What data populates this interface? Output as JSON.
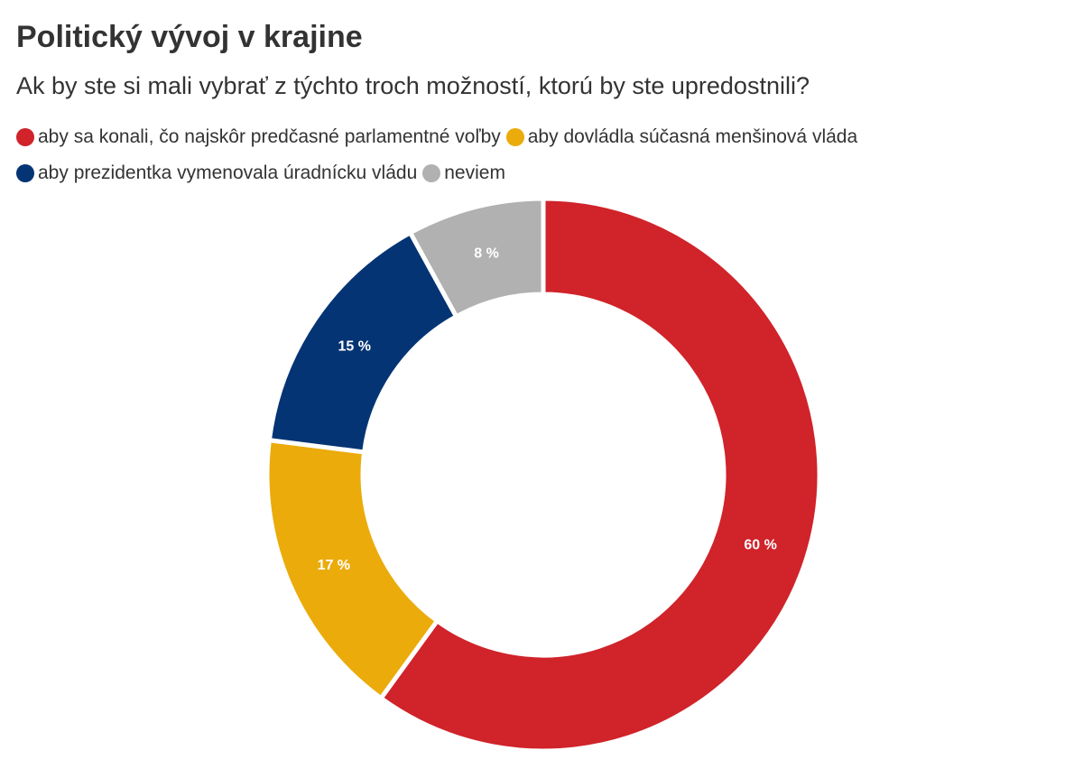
{
  "chart_data": {
    "type": "pie",
    "donut": true,
    "title": "Politický vývoj v krajine",
    "subtitle": "Ak by ste si mali vybrať z týchto troch možností, ktorú by ste upredostnili?",
    "legend_position": "top-left",
    "unit": "%",
    "slices": [
      {
        "name": "aby sa konali, čo najskôr predčasné parlamentné voľby",
        "value": 60,
        "label": "60 %",
        "color": "#d0232a"
      },
      {
        "name": "aby dovládla súčasná menšinová vláda",
        "value": 17,
        "label": "17 %",
        "color": "#ebab0b"
      },
      {
        "name": "aby prezidentka vymenovala úradnícku vládu",
        "value": 15,
        "label": "15 %",
        "color": "#043474"
      },
      {
        "name": "neviem",
        "value": 8,
        "label": "8 %",
        "color": "#b1b1b1"
      }
    ]
  }
}
